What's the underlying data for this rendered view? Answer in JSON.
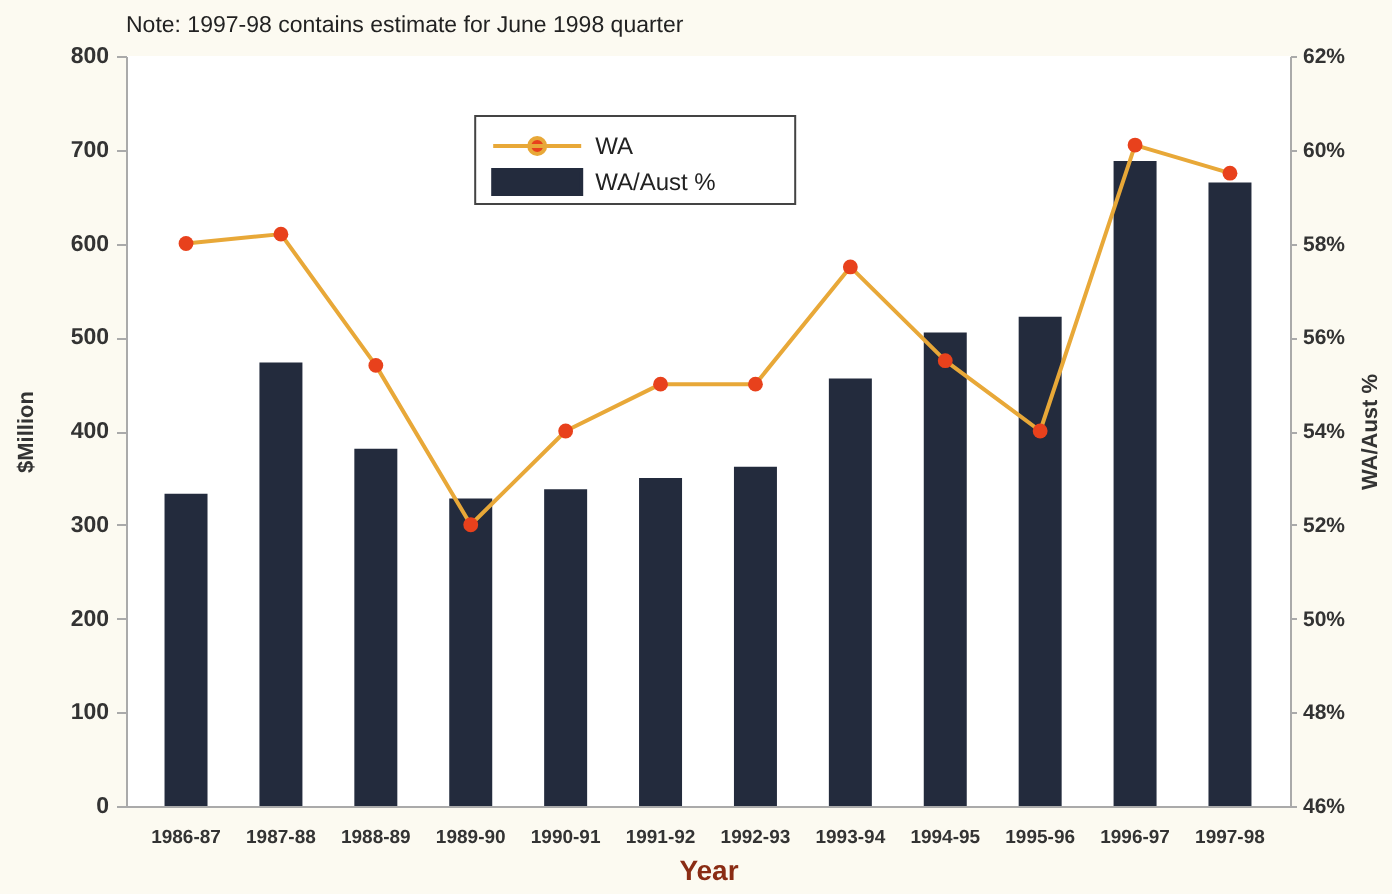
{
  "chart_data": {
    "type": "bar",
    "annotations": [
      "Note: 1997-98 contains estimate for June 1998 quarter"
    ],
    "xlabel": "Year",
    "ylabel": "$Million",
    "y2label": "WA/Aust %",
    "categories": [
      "1986-87",
      "1987-88",
      "1988-89",
      "1989-90",
      "1990-91",
      "1991-92",
      "1992-93",
      "1993-94",
      "1994-95",
      "1995-96",
      "1996-97",
      "1997-98"
    ],
    "series": [
      {
        "name": "WA",
        "type": "line",
        "axis": "y2",
        "color": "#e8a838",
        "colors": [
          "#e8411c",
          "#e8411c",
          "#e8411c",
          "#e8411c",
          "#e8411c",
          "#e8411c",
          "#e8411c",
          "#e8411c",
          "#e8411c",
          "#e8411c",
          "#e8411c",
          "#e8411c"
        ],
        "values": [
          58,
          58.2,
          55.4,
          52,
          54,
          55,
          55,
          57.5,
          55.5,
          54,
          60.1,
          59.5
        ]
      },
      {
        "name": "WA/Aust %",
        "type": "bar",
        "color": "#232b3d",
        "values": [
          333,
          473,
          381,
          328,
          338,
          350,
          362,
          456,
          505,
          522,
          688,
          665
        ]
      }
    ],
    "ylim": [
      0,
      800
    ],
    "yticks": [
      0,
      100,
      200,
      300,
      400,
      500,
      600,
      700,
      800
    ],
    "y2lim": [
      46,
      62
    ],
    "y2ticks": [
      {
        "value": 46,
        "label": "46%"
      },
      {
        "value": 48,
        "label": "48%"
      },
      {
        "value": 50,
        "label": "50%"
      },
      {
        "value": 52,
        "label": "52%"
      },
      {
        "value": 54,
        "label": "54%"
      },
      {
        "value": 56,
        "label": "56%"
      },
      {
        "value": 58,
        "label": "58%"
      },
      {
        "value": 60,
        "label": "60%"
      },
      {
        "value": 62,
        "label": "62%"
      }
    ],
    "legend": "top",
    "marker": "circle",
    "line_style": "solid",
    "grid": false
  }
}
